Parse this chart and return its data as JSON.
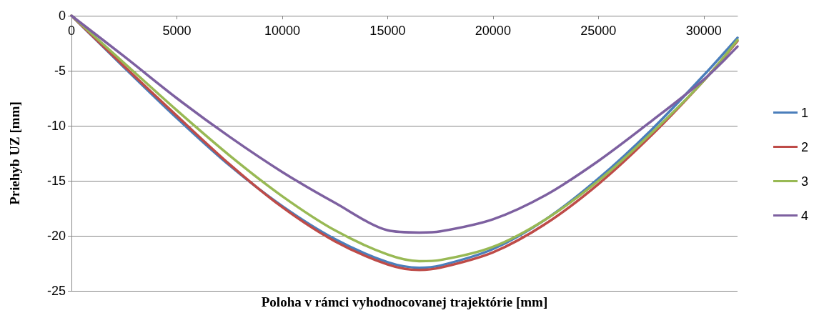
{
  "chart_data": {
    "type": "line",
    "xlabel": "Poloha v rámci vyhodnocovanej trajektórie [mm]",
    "ylabel": "Priehyb UZ [mm]",
    "x": [
      0,
      2500,
      5000,
      7500,
      10000,
      12500,
      15000,
      16500,
      17500,
      20000,
      22500,
      25000,
      27500,
      30000,
      31600
    ],
    "series": [
      {
        "name": "1",
        "color": "#4a7ebb",
        "values": [
          0,
          -4.7,
          -9.3,
          -13.6,
          -17.3,
          -20.3,
          -22.4,
          -22.9,
          -22.7,
          -21.2,
          -18.5,
          -14.8,
          -10.4,
          -5.4,
          -2.0
        ]
      },
      {
        "name": "2",
        "color": "#be4b48",
        "values": [
          0,
          -4.6,
          -9.1,
          -13.5,
          -17.4,
          -20.5,
          -22.6,
          -23.1,
          -22.9,
          -21.5,
          -18.9,
          -15.3,
          -10.9,
          -5.9,
          -2.3
        ]
      },
      {
        "name": "3",
        "color": "#98b954",
        "values": [
          0,
          -4.3,
          -8.6,
          -12.7,
          -16.4,
          -19.5,
          -21.7,
          -22.3,
          -22.2,
          -21.0,
          -18.5,
          -15.0,
          -10.7,
          -5.9,
          -2.2
        ]
      },
      {
        "name": "4",
        "color": "#7d60a0",
        "values": [
          0,
          -3.7,
          -7.5,
          -11.0,
          -14.2,
          -17.0,
          -19.5,
          -19.7,
          -19.6,
          -18.5,
          -16.3,
          -13.2,
          -9.6,
          -5.8,
          -2.8
        ]
      }
    ],
    "xlim": [
      0,
      31600
    ],
    "xticks": [
      0,
      5000,
      10000,
      15000,
      20000,
      25000,
      30000
    ],
    "ylim": [
      -25,
      0
    ],
    "yticks": [
      -25,
      -20,
      -15,
      -10,
      -5,
      0
    ],
    "grid": "y",
    "legend": "right",
    "marker": "none",
    "line_style": "solid"
  }
}
